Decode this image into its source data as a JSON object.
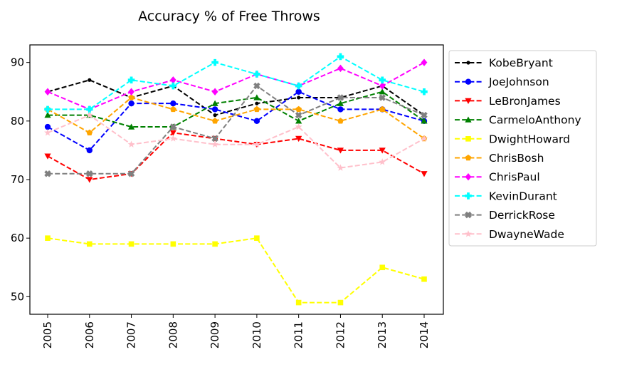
{
  "chart_data": {
    "type": "line",
    "title": "Accuracy % of Free Throws",
    "xlabel": "",
    "ylabel": "",
    "x": [
      "2005",
      "2006",
      "2007",
      "2008",
      "2009",
      "2010",
      "2011",
      "2012",
      "2013",
      "2014"
    ],
    "yticks": [
      "50",
      "60",
      "70",
      "80",
      "90"
    ],
    "ylim": [
      47,
      93
    ],
    "grid": false,
    "legend_position": "outside-right",
    "series": [
      {
        "name": "KobeBryant",
        "color": "#000000",
        "marker": "point",
        "values": [
          85,
          87,
          84,
          86,
          81,
          83,
          84,
          84,
          86,
          81
        ]
      },
      {
        "name": "JoeJohnson",
        "color": "#0000ff",
        "marker": "circle",
        "values": [
          79,
          75,
          83,
          83,
          82,
          80,
          85,
          82,
          82,
          80
        ]
      },
      {
        "name": "LeBronJames",
        "color": "#ff0000",
        "marker": "triangle-down",
        "values": [
          74,
          70,
          71,
          78,
          77,
          76,
          77,
          75,
          75,
          71
        ]
      },
      {
        "name": "CarmeloAnthony",
        "color": "#008000",
        "marker": "triangle-up",
        "values": [
          81,
          81,
          79,
          79,
          83,
          84,
          80,
          83,
          85,
          80
        ]
      },
      {
        "name": "DwightHoward",
        "color": "#ffff00",
        "marker": "square",
        "values": [
          60,
          59,
          59,
          59,
          59,
          60,
          49,
          49,
          55,
          53
        ]
      },
      {
        "name": "ChrisBosh",
        "color": "#ffa500",
        "marker": "pentagon",
        "values": [
          82,
          78,
          84,
          82,
          80,
          82,
          82,
          80,
          82,
          77
        ]
      },
      {
        "name": "ChrisPaul",
        "color": "#ff00ff",
        "marker": "diamond",
        "values": [
          85,
          82,
          85,
          87,
          85,
          88,
          86,
          89,
          86,
          90
        ]
      },
      {
        "name": "KevinDurant",
        "color": "#00ffff",
        "marker": "plus",
        "values": [
          82,
          82,
          87,
          86,
          90,
          88,
          86,
          91,
          87,
          85
        ]
      },
      {
        "name": "DerrickRose",
        "color": "#808080",
        "marker": "x",
        "values": [
          71,
          71,
          71,
          79,
          77,
          86,
          81,
          84,
          84,
          81
        ]
      },
      {
        "name": "DwayneWade",
        "color": "#ffc0cb",
        "marker": "star",
        "values": [
          78,
          81,
          76,
          77,
          76,
          76,
          79,
          72,
          73,
          77
        ]
      }
    ]
  }
}
